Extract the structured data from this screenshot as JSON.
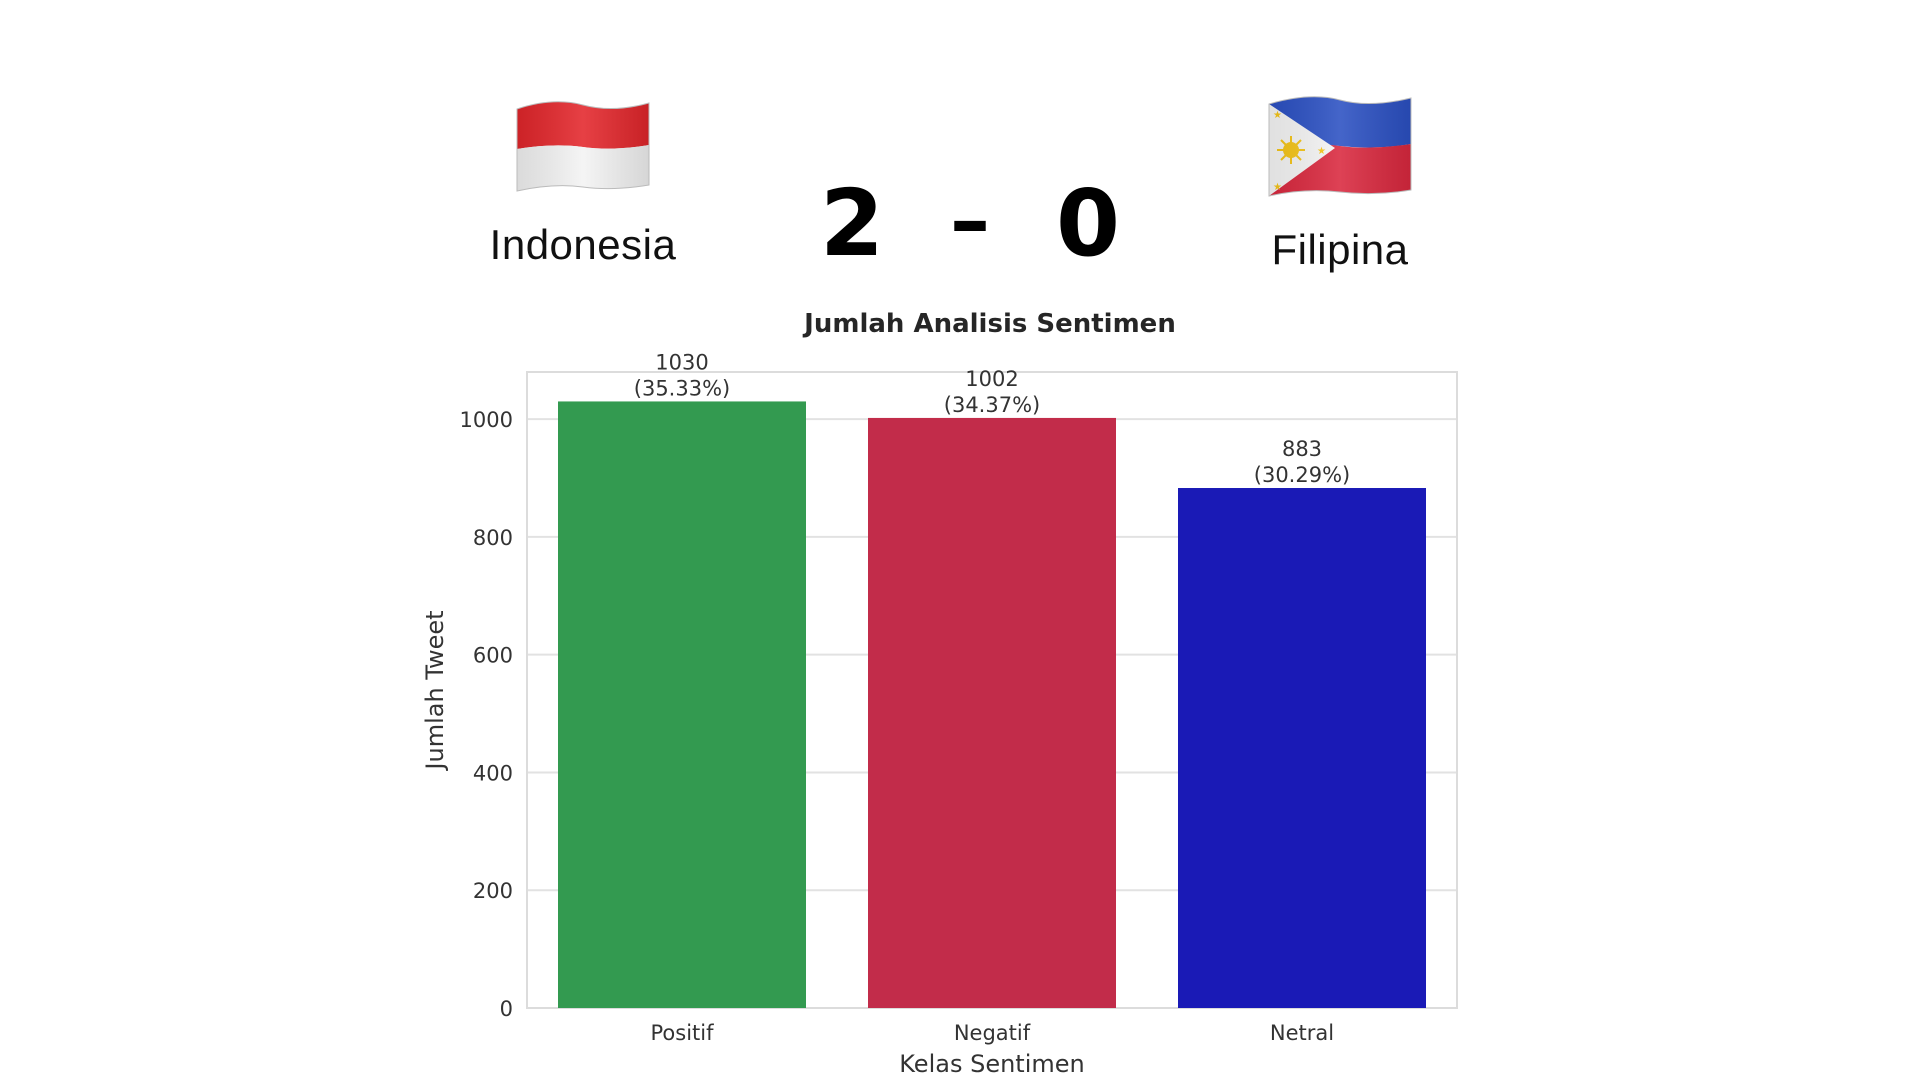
{
  "match": {
    "home_team": "Indonesia",
    "away_team": "Filipina",
    "home_score": "2",
    "separator": "–",
    "away_score": "0"
  },
  "chart_data": {
    "type": "bar",
    "title": "Jumlah Analisis Sentimen",
    "xlabel": "Kelas Sentimen",
    "ylabel": "Jumlah Tweet",
    "categories": [
      "Positif",
      "Negatif",
      "Netral"
    ],
    "values": [
      1030,
      1002,
      883
    ],
    "value_labels": [
      "1030",
      "1002",
      "883"
    ],
    "percent_labels": [
      "(35.33%)",
      "(34.37%)",
      "(30.29%)"
    ],
    "colors": [
      "#339a50",
      "#c22c4a",
      "#1a1ab6"
    ],
    "ylim": [
      0,
      1080
    ],
    "yticks": [
      0,
      200,
      400,
      600,
      800,
      1000
    ],
    "grid": true
  }
}
